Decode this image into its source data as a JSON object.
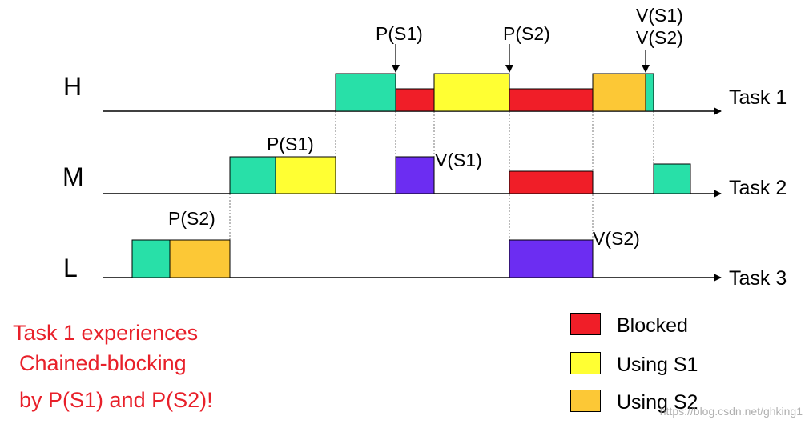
{
  "colors": {
    "teal": "#28e0a8",
    "blocked": "#f01e28",
    "using_s1": "#ffff33",
    "using_s2": "#fcc836",
    "purple": "#6c2df2"
  },
  "rows": [
    {
      "key": "H",
      "label": "H",
      "task": "Task 1"
    },
    {
      "key": "M",
      "label": "M",
      "task": "Task 2"
    },
    {
      "key": "L",
      "label": "L",
      "task": "Task 3"
    }
  ],
  "events": {
    "h_p_s1": "P(S1)",
    "h_p_s2": "P(S2)",
    "h_v_s1": "V(S1)",
    "h_v_s2": "V(S2)",
    "m_p_s1": "P(S1)",
    "m_v_s1": "V(S1)",
    "l_p_s2": "P(S2)",
    "l_v_s2": "V(S2)"
  },
  "caption": {
    "line1": "Task 1 experiences",
    "line2": "Chained-blocking",
    "line3": "by P(S1) and P(S2)!"
  },
  "legend": {
    "blocked": "Blocked",
    "using_s1": "Using S1",
    "using_s2": "Using S2"
  },
  "watermark": "https://blog.csdn.net/ghking1"
}
